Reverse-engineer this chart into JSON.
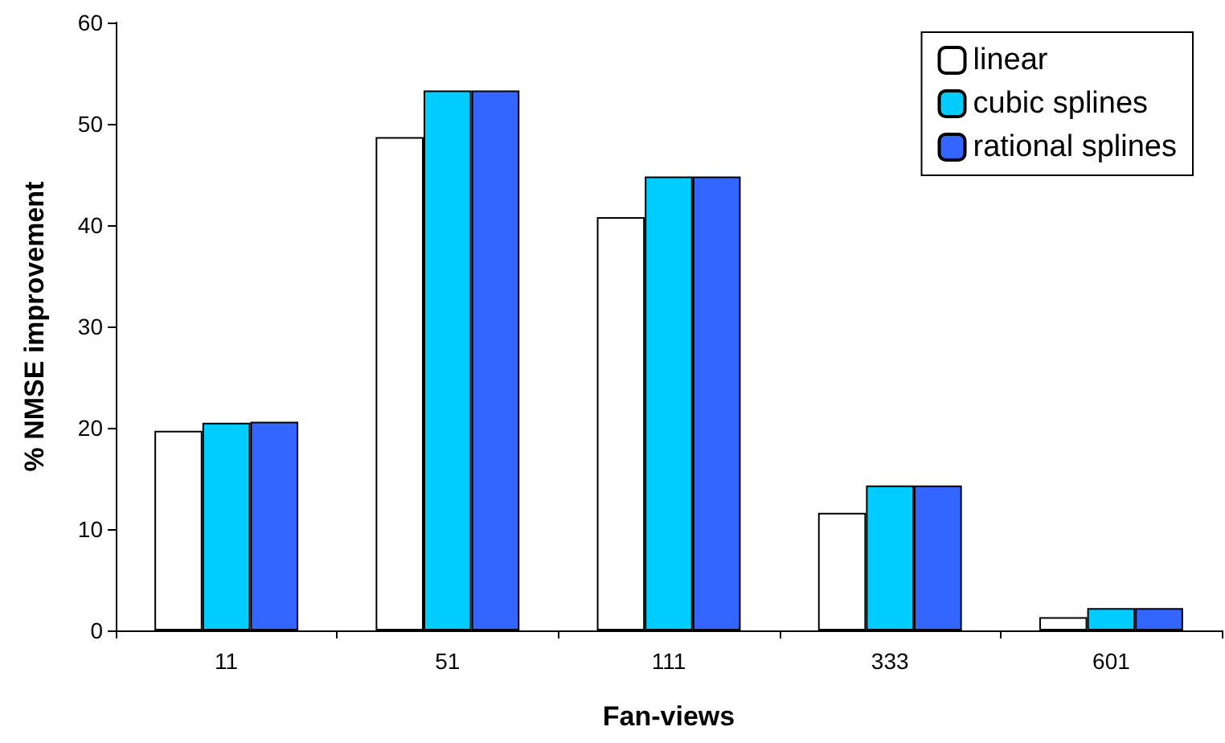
{
  "chart_data": {
    "type": "bar",
    "xlabel": "Fan-views",
    "ylabel": "% NMSE improvement",
    "categories": [
      "11",
      "51",
      "111",
      "333",
      "601"
    ],
    "series": [
      {
        "name": "linear",
        "color": "#ffffff",
        "values": [
          19.7,
          48.7,
          40.8,
          11.6,
          1.3
        ]
      },
      {
        "name": "cubic splines",
        "color": "#00ccff",
        "values": [
          20.5,
          53.3,
          44.8,
          14.3,
          2.2
        ]
      },
      {
        "name": "rational splines",
        "color": "#3366ff",
        "values": [
          20.6,
          53.3,
          44.8,
          14.3,
          2.2
        ]
      }
    ],
    "ylim": [
      0,
      60
    ],
    "yticks": [
      0,
      10,
      20,
      30,
      40,
      50,
      60
    ],
    "grid": false,
    "legend": "top right"
  }
}
